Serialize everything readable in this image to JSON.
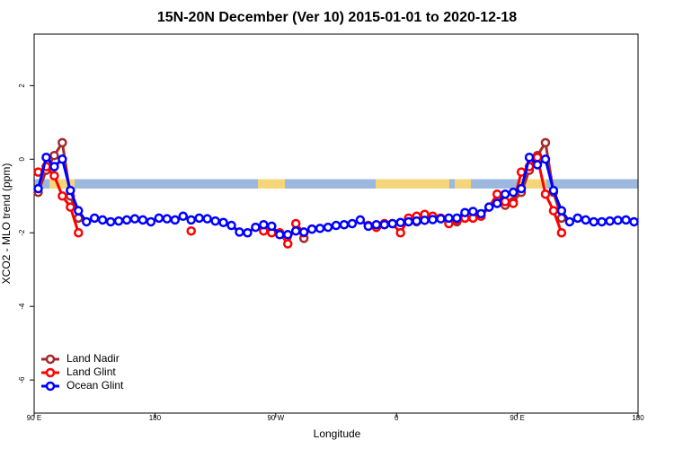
{
  "chart_data": {
    "type": "line",
    "title": "15N-20N December (Ver 10)   2015-01-01 to 2020-12-18",
    "xlabel": "Longitude",
    "ylabel": "XCO2 - MLO trend (ppm)",
    "x": [
      93,
      99,
      105,
      111,
      117,
      123,
      129,
      135,
      141,
      147,
      153,
      159,
      165,
      171,
      177,
      183,
      189,
      195,
      201,
      207,
      213,
      219,
      225,
      231,
      237,
      243,
      249,
      255,
      261,
      267,
      273,
      279,
      285,
      291,
      297,
      303,
      309,
      315,
      321,
      327,
      333,
      339,
      345,
      351,
      357,
      363,
      369,
      375,
      381,
      387,
      393,
      399,
      405,
      411,
      417,
      423,
      429,
      435,
      441,
      447,
      453,
      459,
      465,
      471,
      477,
      483,
      489,
      495,
      501,
      507,
      513,
      519,
      525,
      531,
      537
    ],
    "series": [
      {
        "name": "Land Nadir",
        "color": "#a52a2a",
        "values": [
          -0.9,
          -0.3,
          0.1,
          0.45,
          -1.0,
          -1.6,
          null,
          null,
          null,
          null,
          null,
          null,
          null,
          null,
          null,
          null,
          null,
          null,
          null,
          null,
          null,
          null,
          null,
          null,
          null,
          null,
          null,
          null,
          null,
          null,
          null,
          null,
          null,
          -2.15,
          null,
          null,
          null,
          null,
          null,
          null,
          null,
          null,
          -1.85,
          null,
          null,
          null,
          null,
          -1.7,
          null,
          null,
          null,
          null,
          -1.7,
          -1.6,
          null,
          null,
          null,
          -1.2,
          -1.25,
          -1.15,
          -0.9,
          -0.3,
          0.1,
          0.45,
          -0.9,
          -1.6,
          null,
          null,
          null,
          null,
          null,
          null,
          null,
          null,
          null
        ]
      },
      {
        "name": "Land Glint",
        "color": "#ff0000",
        "values": [
          -0.35,
          -0.2,
          -0.45,
          -1.0,
          -1.3,
          -2.0,
          null,
          null,
          null,
          null,
          null,
          null,
          null,
          null,
          null,
          null,
          null,
          null,
          null,
          -1.95,
          null,
          null,
          null,
          null,
          null,
          null,
          null,
          null,
          -1.95,
          -2.0,
          -2.0,
          -2.3,
          -1.75,
          -2.0,
          -1.9,
          null,
          null,
          null,
          null,
          null,
          null,
          -1.8,
          -1.85,
          -1.75,
          -1.75,
          -2.0,
          -1.6,
          -1.55,
          -1.5,
          -1.55,
          -1.6,
          -1.75,
          -1.65,
          -1.6,
          -1.6,
          -1.55,
          -1.3,
          -0.95,
          -1.15,
          -1.2,
          -0.35,
          -0.2,
          0.05,
          -0.95,
          -1.4,
          -2.0,
          null,
          null,
          null,
          null,
          null,
          null,
          null,
          null,
          null
        ]
      },
      {
        "name": "Ocean Glint",
        "color": "#0000ff",
        "values": [
          -0.8,
          0.05,
          -0.2,
          0.0,
          -0.85,
          -1.4,
          -1.7,
          -1.6,
          -1.65,
          -1.7,
          -1.68,
          -1.65,
          -1.62,
          -1.65,
          -1.7,
          -1.6,
          -1.62,
          -1.65,
          -1.55,
          -1.65,
          -1.6,
          -1.62,
          -1.68,
          -1.72,
          -1.8,
          -1.98,
          -2.0,
          -1.85,
          -1.78,
          -1.82,
          -2.05,
          -2.05,
          -1.95,
          -1.98,
          -1.9,
          -1.88,
          -1.85,
          -1.8,
          -1.78,
          -1.75,
          -1.65,
          -1.82,
          -1.78,
          -1.78,
          -1.75,
          -1.72,
          -1.7,
          -1.68,
          -1.66,
          -1.64,
          -1.62,
          -1.6,
          -1.6,
          -1.45,
          -1.42,
          -1.48,
          -1.3,
          -1.2,
          -0.95,
          -0.9,
          -0.8,
          0.05,
          -0.15,
          0.0,
          -0.85,
          -1.4,
          -1.7,
          -1.6,
          -1.65,
          -1.7,
          -1.7,
          -1.68,
          -1.66,
          -1.65,
          -1.7
        ]
      }
    ],
    "xlim": [
      90,
      540
    ],
    "xticks": [
      {
        "value": 90,
        "label": "90 E"
      },
      180,
      {
        "value": 270,
        "label": "90 W"
      },
      {
        "value": 360,
        "label": "0"
      },
      {
        "value": 450,
        "label": "90 E"
      },
      {
        "value": 540,
        "label": "180"
      }
    ],
    "ylim": [
      -6.9,
      3.4
    ],
    "yticks": [
      -6,
      -4,
      -2,
      0,
      2
    ],
    "legend": "bottom-left"
  }
}
